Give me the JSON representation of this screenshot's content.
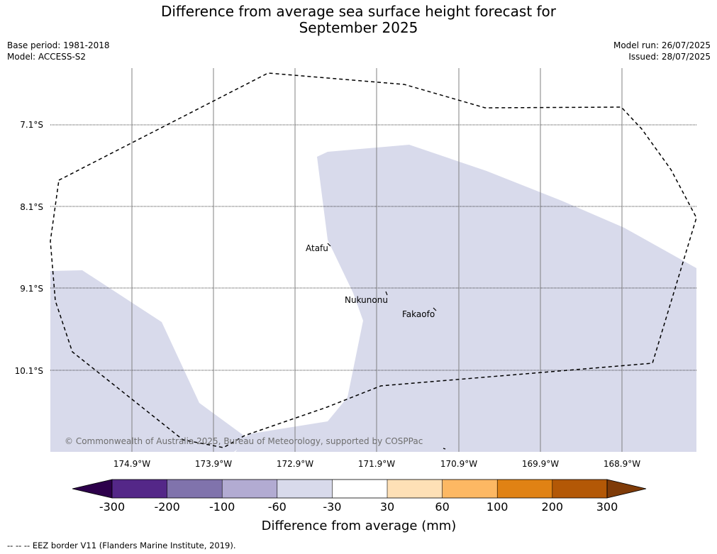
{
  "title_line1": "Difference from average sea surface height forecast for",
  "title_line2": "September 2025",
  "base_period": "Base period: 1981-2018",
  "model": "Model: ACCESS-S2",
  "model_run": "Model run: 26/07/2025",
  "issued": "Issued: 28/07/2025",
  "latitude_labels": [
    "7.1°S",
    "8.1°S",
    "9.1°S",
    "10.1°S"
  ],
  "longitude_labels": [
    "174.9°W",
    "173.9°W",
    "172.9°W",
    "171.9°W",
    "170.9°W",
    "169.9°W",
    "168.9°W"
  ],
  "places": [
    {
      "name": "Atafu"
    },
    {
      "name": "Nukunonu"
    },
    {
      "name": "Fakaofo"
    }
  ],
  "copyright": "© Commonwealth of Australia 2025, Bureau of Meteorology, supported by COSPPac",
  "colorbar": {
    "label": "Difference from average (mm)",
    "ticks": [
      "-300",
      "-200",
      "-100",
      "-60",
      "-30",
      "30",
      "60",
      "100",
      "200",
      "300"
    ],
    "colors": [
      "#2d004b",
      "#542788",
      "#8073ac",
      "#b2abd2",
      "#d8daeb",
      "#ffffff",
      "#fee0b6",
      "#fdb863",
      "#e08214",
      "#b35806",
      "#7f3b08"
    ]
  },
  "map_fill_color": "#d8daeb",
  "footnote": "--  --  -- EEZ border V11 (Flanders Marine Institute, 2019)."
}
